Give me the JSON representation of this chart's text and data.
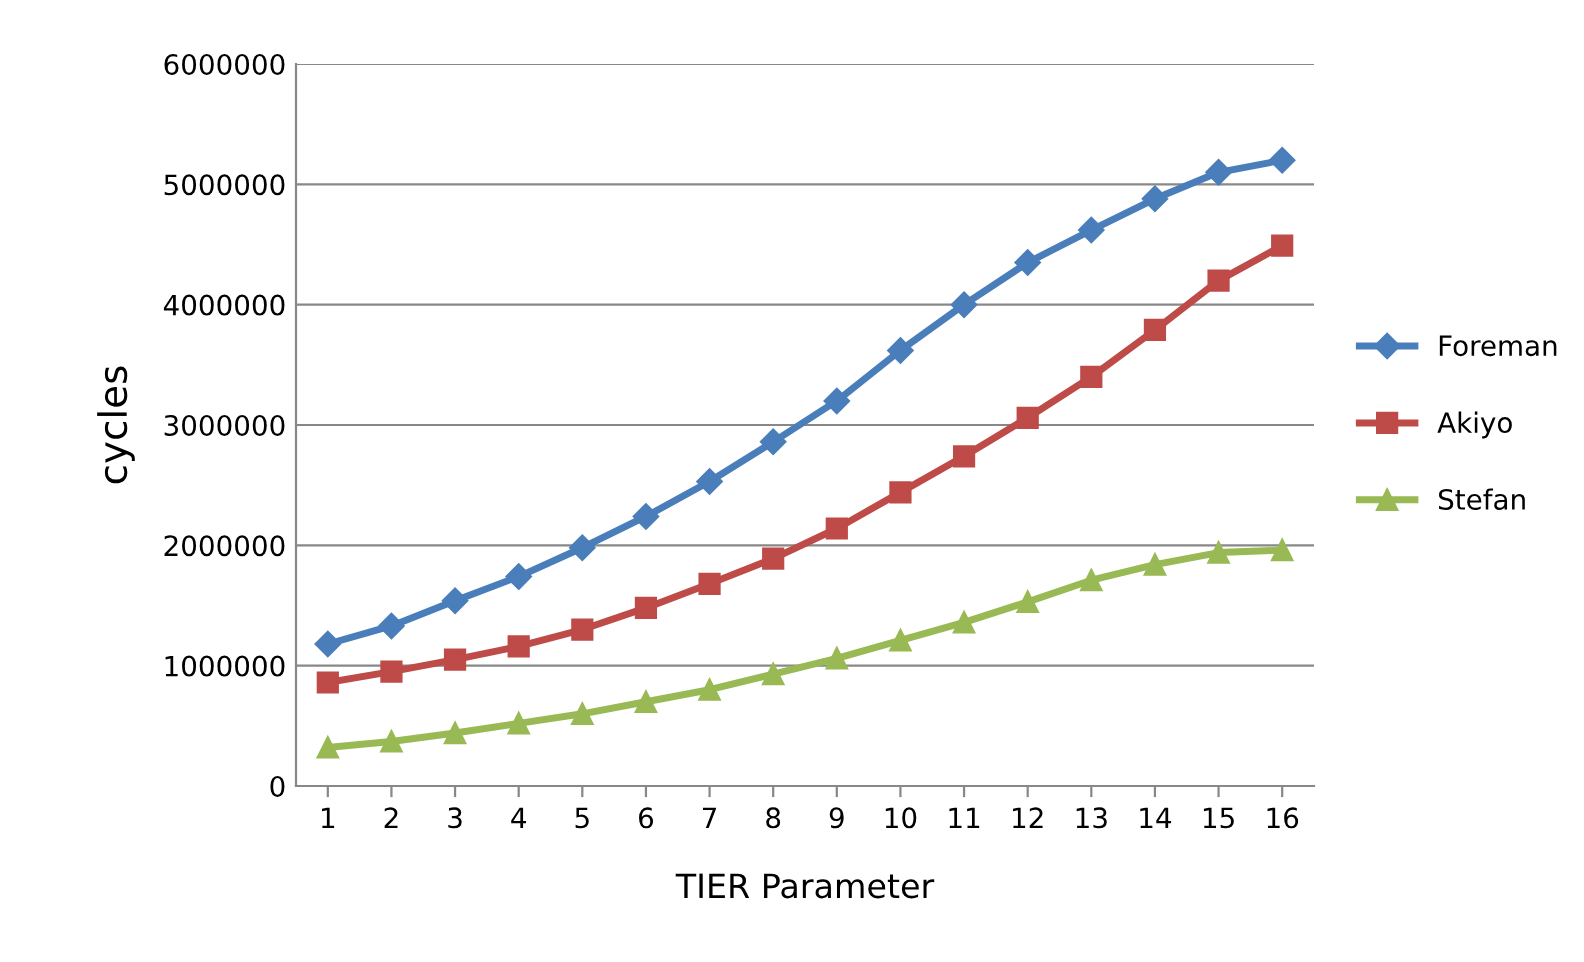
{
  "chart_data": {
    "type": "line",
    "xlabel": "TIER Parameter",
    "ylabel": "cycles",
    "categories": [
      "1",
      "2",
      "3",
      "4",
      "5",
      "6",
      "7",
      "8",
      "9",
      "10",
      "11",
      "12",
      "13",
      "14",
      "15",
      "16"
    ],
    "series": [
      {
        "name": "Foreman",
        "color": "#4a7ebb",
        "marker": "diamond",
        "values": [
          1180000,
          1330000,
          1540000,
          1740000,
          1980000,
          2240000,
          2530000,
          2860000,
          3200000,
          3620000,
          4000000,
          4350000,
          4620000,
          4880000,
          5100000,
          5200000
        ]
      },
      {
        "name": "Akiyo",
        "color": "#be4b48",
        "marker": "square",
        "values": [
          860000,
          950000,
          1050000,
          1160000,
          1300000,
          1480000,
          1680000,
          1890000,
          2140000,
          2440000,
          2740000,
          3060000,
          3400000,
          3790000,
          4200000,
          4490000
        ]
      },
      {
        "name": "Stefan",
        "color": "#98b954",
        "marker": "triangle",
        "values": [
          320000,
          370000,
          440000,
          520000,
          600000,
          700000,
          800000,
          930000,
          1060000,
          1210000,
          1360000,
          1530000,
          1710000,
          1840000,
          1940000,
          1960000
        ]
      }
    ],
    "ylim": [
      0,
      6000000
    ],
    "yticks": [
      0,
      1000000,
      2000000,
      3000000,
      4000000,
      5000000,
      6000000
    ],
    "grid": "y",
    "legend": "right",
    "line_style": "solid"
  }
}
